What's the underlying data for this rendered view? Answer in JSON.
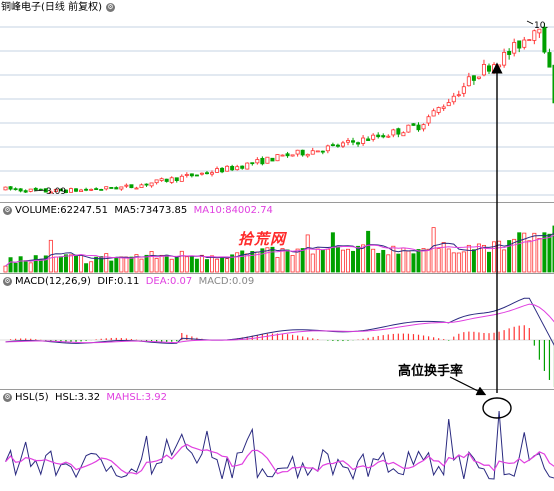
{
  "price_panel": {
    "title": "铜峰电子(日线 前复权)",
    "low_label": "3.09",
    "high_label": "10."
  },
  "volume_panel": {
    "name": "VOLUME",
    "value": "62247.51",
    "ma5_label": "MA5",
    "ma5": "73473.85",
    "ma10_label": "MA10",
    "ma10": "84002.74"
  },
  "macd_panel": {
    "name": "MACD(12,26,9)",
    "dif_label": "DIF",
    "dif": "0.11",
    "dea_label": "DEA",
    "dea": "0.07",
    "macd_label": "MACD",
    "macd": "0.09"
  },
  "hsl_panel": {
    "name": "HSL(5)",
    "hsl_label": "HSL",
    "hsl": "3.32",
    "mahsl_label": "MAHSL",
    "mahsl": "3.92"
  },
  "watermark": "拾荒网",
  "annotation": "高位换手率",
  "colors": {
    "up": "#ff3232",
    "down": "#00a000",
    "grid": "#8ea7c8",
    "line_dark": "#2a2a80",
    "line_magenta": "#e040e0",
    "watermark": "#ff2a2a"
  }
}
